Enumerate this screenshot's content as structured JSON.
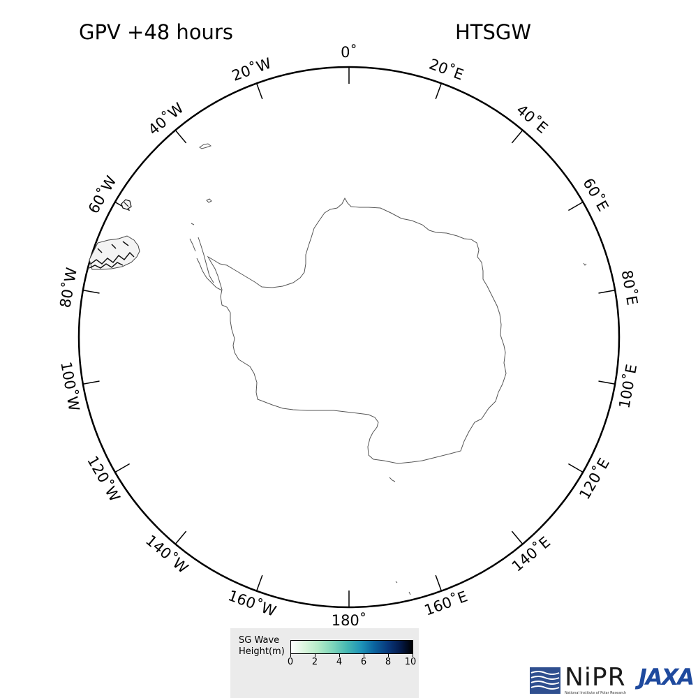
{
  "title_left": "GPV +48 hours",
  "title_right": "HTSGW",
  "longitude_labels": [
    {
      "lon": 0,
      "text": "0˚"
    },
    {
      "lon": 20,
      "text": "20˚E"
    },
    {
      "lon": 40,
      "text": "40˚E"
    },
    {
      "lon": 60,
      "text": "60˚E"
    },
    {
      "lon": 80,
      "text": "80˚E"
    },
    {
      "lon": 100,
      "text": "100˚E"
    },
    {
      "lon": 120,
      "text": "120˚E"
    },
    {
      "lon": 140,
      "text": "140˚E"
    },
    {
      "lon": 160,
      "text": "160˚E"
    },
    {
      "lon": 180,
      "text": "180˚"
    },
    {
      "lon": -160,
      "text": "160˚W"
    },
    {
      "lon": -140,
      "text": "140˚W"
    },
    {
      "lon": -120,
      "text": "120˚W"
    },
    {
      "lon": -100,
      "text": "100˚W"
    },
    {
      "lon": -80,
      "text": "80˚W"
    },
    {
      "lon": -60,
      "text": "60˚W"
    },
    {
      "lon": -40,
      "text": "40˚W"
    },
    {
      "lon": -20,
      "text": "20˚W"
    }
  ],
  "legend": {
    "title_line1": "SG Wave",
    "title_line2": "Height(m)",
    "ticks": [
      "0",
      "2",
      "4",
      "6",
      "8",
      "10"
    ]
  },
  "logos": {
    "nipr": "NiPR",
    "nipr_sub": "National Institute of Polar Research",
    "jaxa": "JAXA"
  },
  "colors": {
    "coastline": "#555555",
    "frame": "#000000",
    "high_wave": "#111111"
  }
}
